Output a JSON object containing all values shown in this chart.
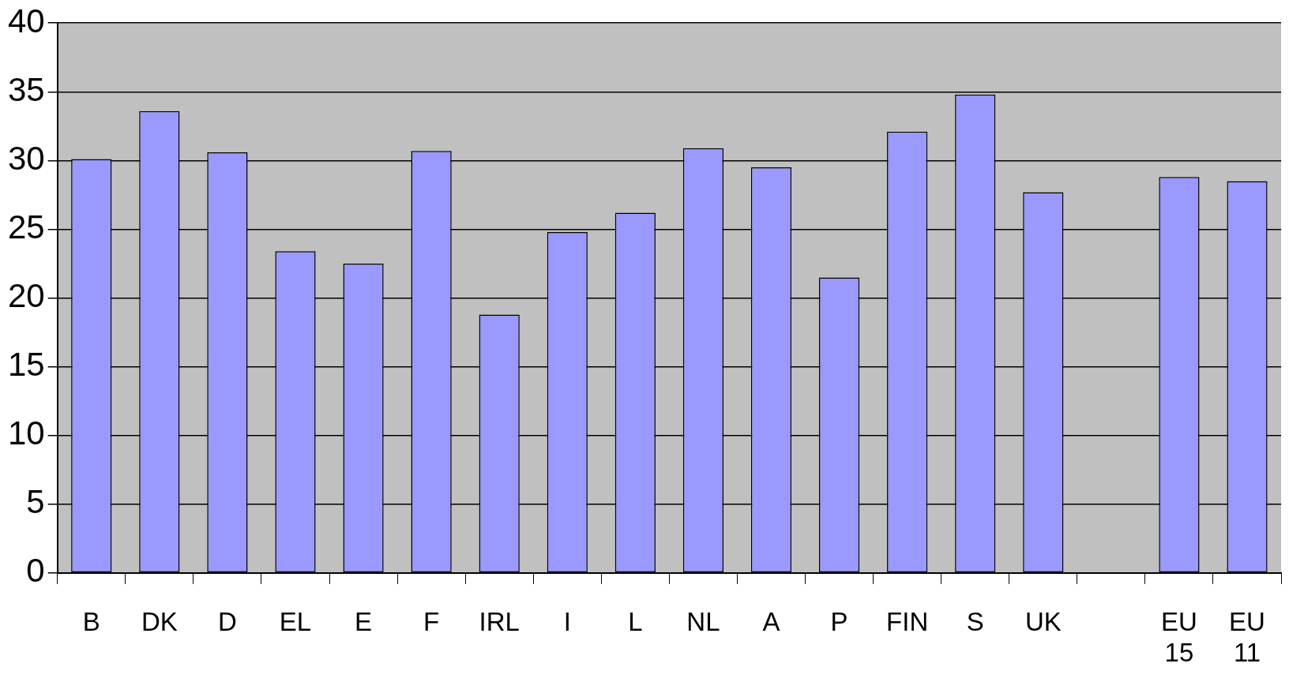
{
  "chart_data": {
    "type": "bar",
    "categories": [
      "B",
      "DK",
      "D",
      "EL",
      "E",
      "F",
      "IRL",
      "I",
      "L",
      "NL",
      "A",
      "P",
      "FIN",
      "S",
      "UK",
      null,
      "EU 15",
      "EU 11"
    ],
    "values": [
      30.1,
      33.6,
      30.6,
      23.4,
      22.5,
      30.7,
      18.8,
      24.8,
      26.2,
      30.9,
      29.5,
      21.5,
      32.1,
      34.8,
      27.7,
      null,
      28.8,
      28.5
    ],
    "color": "#9999ff",
    "ylim": [
      0,
      40
    ],
    "yticks": [
      0,
      5,
      10,
      15,
      20,
      25,
      30,
      35,
      40
    ],
    "grid": "y",
    "legend": false
  }
}
